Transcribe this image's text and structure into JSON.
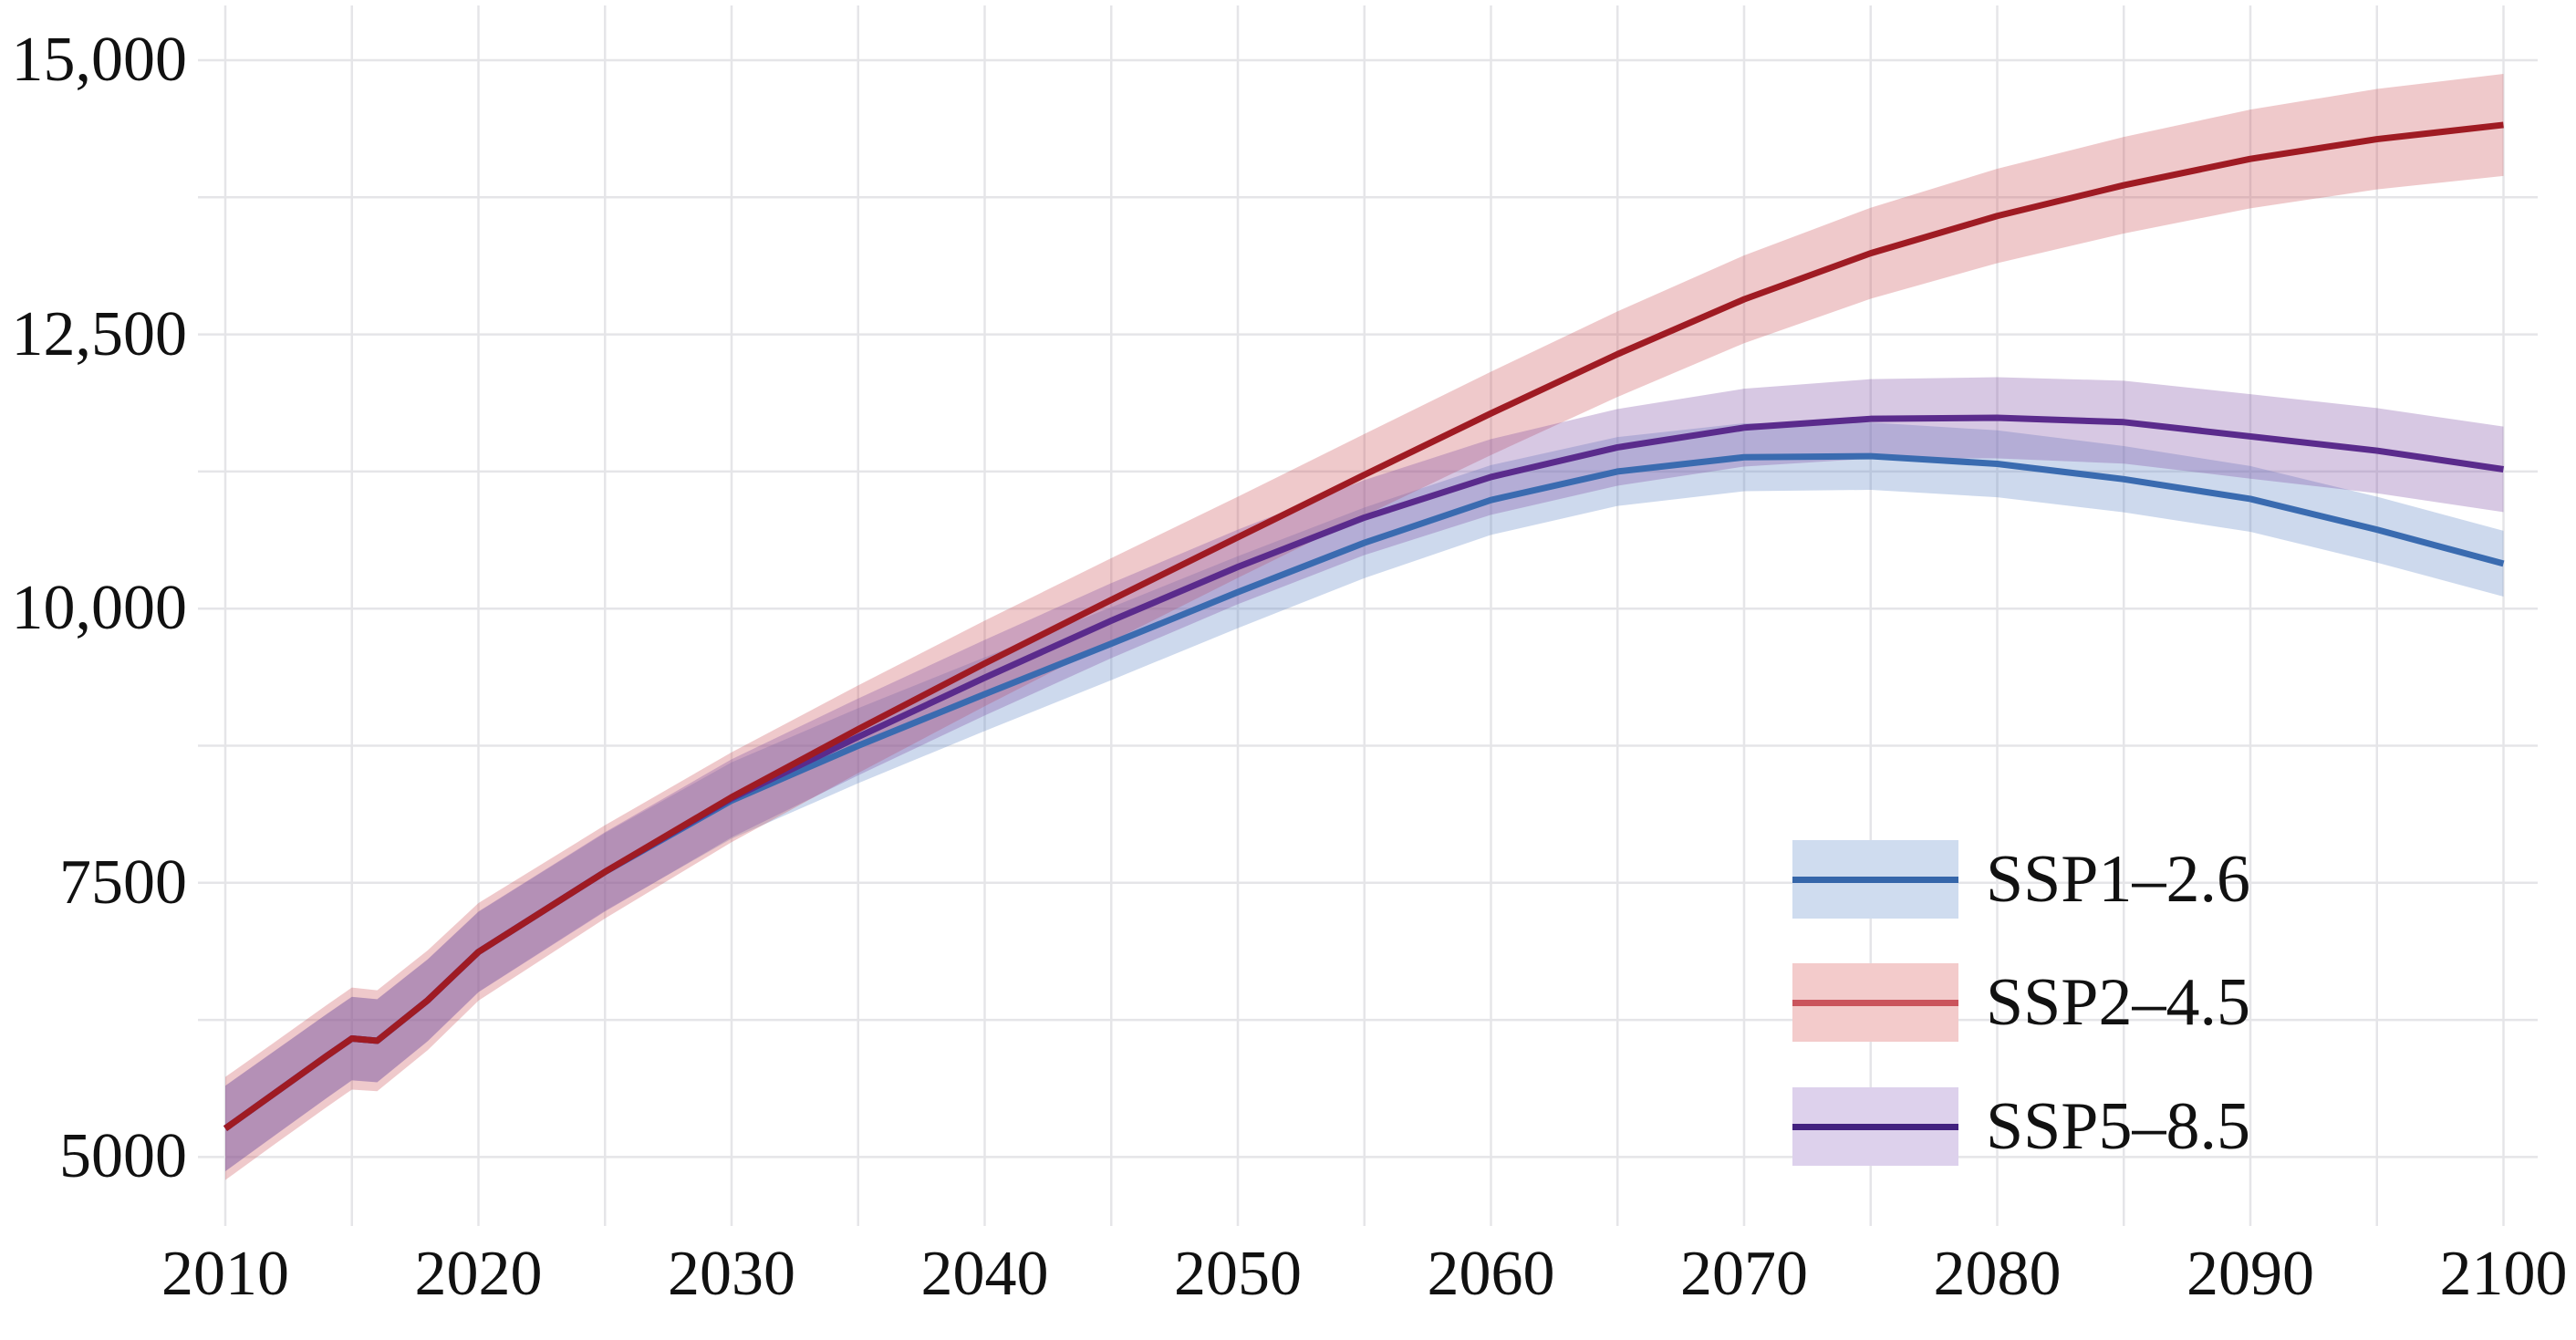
{
  "chart_data": {
    "type": "line",
    "title": "",
    "subtitle": "",
    "xlabel": "",
    "ylabel": "",
    "grid": true,
    "background_color": "#ffffff",
    "gridline_color": "#e5e5e8",
    "x_years": [
      2010,
      2012,
      2014,
      2015,
      2016,
      2018,
      2020,
      2025,
      2030,
      2035,
      2040,
      2045,
      2050,
      2055,
      2060,
      2065,
      2070,
      2075,
      2080,
      2085,
      2090,
      2095,
      2100
    ],
    "series": [
      {
        "name": "SSP1-2.6",
        "line_color": "#3a6bb0",
        "band_color": "rgba(90, 130, 195, 0.30)",
        "values": [
          5260,
          5590,
          5920,
          6080,
          6060,
          6430,
          6870,
          7600,
          8250,
          8750,
          9220,
          9680,
          10150,
          10600,
          10990,
          11250,
          11380,
          11390,
          11320,
          11180,
          11000,
          10720,
          10410
        ],
        "upper": [
          5650,
          5975,
          6302,
          6460,
          6438,
          6802,
          7235,
          7955,
          8598,
          9092,
          9556,
          10012,
          10478,
          10922,
          11308,
          11564,
          11690,
          11697,
          11625,
          11482,
          11300,
          11020,
          10710
        ],
        "lower": [
          4870,
          5205,
          5538,
          5700,
          5682,
          6058,
          6505,
          7245,
          7902,
          8408,
          8884,
          9348,
          9822,
          10278,
          10672,
          10936,
          11070,
          11083,
          11015,
          10878,
          10700,
          10420,
          10110
        ]
      },
      {
        "name": "SSP2-4.5",
        "line_color": "#9f1b23",
        "band_color": "rgba(205, 92, 98, 0.33)",
        "values": [
          5260,
          5590,
          5920,
          6080,
          6060,
          6430,
          6870,
          7600,
          8280,
          8900,
          9500,
          10080,
          10650,
          11220,
          11780,
          12320,
          12820,
          13240,
          13580,
          13860,
          14100,
          14280,
          14410
        ],
        "upper": [
          5730,
          6055,
          6385,
          6545,
          6520,
          6885,
          7315,
          8025,
          8690,
          9300,
          9890,
          10460,
          11020,
          11592,
          12160,
          12710,
          13220,
          13655,
          14010,
          14300,
          14550,
          14738,
          14875
        ],
        "lower": [
          4790,
          5125,
          5455,
          5615,
          5600,
          5975,
          6425,
          7175,
          7870,
          8500,
          9110,
          9700,
          10280,
          10848,
          11400,
          11930,
          12420,
          12825,
          13150,
          13420,
          13650,
          13822,
          13945
        ]
      },
      {
        "name": "SSP5-8.5",
        "line_color": "#5a2b8c",
        "band_color": "rgba(122, 72, 162, 0.30)",
        "values": [
          5260,
          5590,
          5920,
          6080,
          6060,
          6430,
          6870,
          7600,
          8270,
          8830,
          9370,
          9890,
          10380,
          10830,
          11200,
          11470,
          11650,
          11730,
          11740,
          11700,
          11570,
          11440,
          11270
        ],
        "upper": [
          5650,
          5976,
          6303,
          6461,
          6439,
          6804,
          7238,
          7962,
          8626,
          9180,
          9715,
          10232,
          10720,
          11172,
          11545,
          11820,
          12005,
          12092,
          12110,
          12078,
          11955,
          11828,
          11660
        ],
        "lower": [
          4870,
          5204,
          5537,
          5699,
          5681,
          6056,
          6502,
          7238,
          7914,
          8480,
          9025,
          9548,
          10040,
          10488,
          10855,
          11120,
          11295,
          11368,
          11370,
          11322,
          11185,
          11052,
          10880
        ]
      }
    ],
    "band_draw_order": [
      0,
      1,
      2
    ],
    "line_draw_order": [
      0,
      2,
      1
    ],
    "axes": {
      "x": {
        "range": [
          2010,
          2100
        ],
        "gridline_years": [
          2010,
          2015,
          2020,
          2025,
          2030,
          2035,
          2040,
          2045,
          2050,
          2055,
          2060,
          2065,
          2070,
          2075,
          2080,
          2085,
          2090,
          2095,
          2100
        ],
        "ticks": [
          {
            "year": 2010,
            "label": "2010"
          },
          {
            "year": 2020,
            "label": "2020"
          },
          {
            "year": 2030,
            "label": "2030"
          },
          {
            "year": 2040,
            "label": "2040"
          },
          {
            "year": 2050,
            "label": "2050"
          },
          {
            "year": 2060,
            "label": "2060"
          },
          {
            "year": 2070,
            "label": "2070"
          },
          {
            "year": 2080,
            "label": "2080"
          },
          {
            "year": 2090,
            "label": "2090"
          },
          {
            "year": 2100,
            "label": "2100"
          }
        ]
      },
      "y": {
        "range": [
          4500,
          15500
        ],
        "gridline_values": [
          5000,
          6250,
          7500,
          8750,
          10000,
          11250,
          12500,
          13750,
          15000
        ],
        "ticks": [
          {
            "value": 15000,
            "label": "15,000"
          },
          {
            "value": 12500,
            "label": "12,500"
          },
          {
            "value": 10000,
            "label": "10,000"
          },
          {
            "value": 7500,
            "label": "7500"
          },
          {
            "value": 5000,
            "label": "5000"
          }
        ]
      }
    },
    "legend": {
      "position": "inside-bottom-right",
      "items": [
        {
          "label": "SSP1–2.6",
          "line_color": "#3566aa",
          "band_color": "#cfdcef"
        },
        {
          "label": "SSP2–4.5",
          "line_color": "#ca545c",
          "band_color": "#f3cbcb"
        },
        {
          "label": "SSP5–8.5",
          "line_color": "#42217f",
          "band_color": "#ddd1ec"
        }
      ]
    }
  }
}
